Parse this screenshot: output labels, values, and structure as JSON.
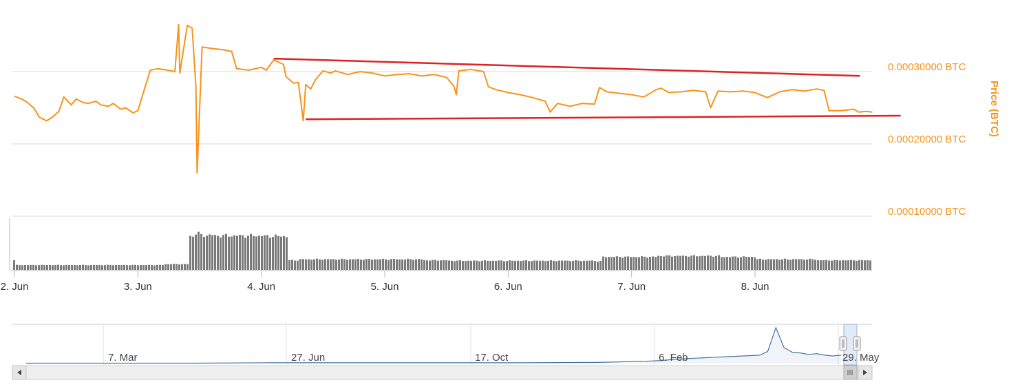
{
  "colors": {
    "price_line": "#f7931a",
    "trend_lines": "#e02020",
    "volume_bars": "#7a7a7a",
    "grid": "#d8d8d8",
    "navigator_line": "#4572a7",
    "axis_label": "#f7931a"
  },
  "chart_data": {
    "type": "line",
    "y_axis": {
      "title": "Price (BTC)",
      "ticks": [
        "0.00030000 BTC",
        "0.00020000 BTC",
        "0.00010000 BTC"
      ],
      "tick_values": [
        0.0003,
        0.0002,
        0.0001
      ],
      "ylim": [
        0.0001,
        0.00039
      ]
    },
    "x_axis": {
      "ticks": [
        "2. Jun",
        "3. Jun",
        "4. Jun",
        "5. Jun",
        "6. Jun",
        "7. Jun",
        "8. Jun"
      ],
      "tick_values": [
        2,
        3,
        4,
        5,
        6,
        7,
        8
      ],
      "xlim": [
        2.0,
        8.95
      ]
    },
    "grid": true,
    "series": [],
    "price": {
      "x": [
        2.0,
        2.06,
        2.1,
        2.16,
        2.2,
        2.26,
        2.3,
        2.36,
        2.4,
        2.46,
        2.5,
        2.56,
        2.6,
        2.66,
        2.7,
        2.76,
        2.8,
        2.86,
        2.9,
        2.96,
        3.0,
        3.1,
        3.16,
        3.24,
        3.3,
        3.33,
        3.34,
        3.4,
        3.44,
        3.47,
        3.48,
        3.52,
        3.6,
        3.7,
        3.76,
        3.8,
        3.9,
        4.0,
        4.04,
        4.1,
        4.18,
        4.2,
        4.26,
        4.3,
        4.34,
        4.36,
        4.4,
        4.44,
        4.5,
        4.56,
        4.6,
        4.7,
        4.8,
        4.9,
        5.0,
        5.1,
        5.2,
        5.3,
        5.4,
        5.5,
        5.56,
        5.58,
        5.6,
        5.7,
        5.8,
        5.84,
        5.9,
        6.0,
        6.1,
        6.2,
        6.3,
        6.34,
        6.4,
        6.5,
        6.6,
        6.7,
        6.74,
        6.8,
        6.9,
        7.0,
        7.1,
        7.2,
        7.24,
        7.3,
        7.4,
        7.5,
        7.6,
        7.64,
        7.7,
        7.8,
        7.9,
        8.0,
        8.1,
        8.2,
        8.3,
        8.4,
        8.5,
        8.56,
        8.6,
        8.7,
        8.8,
        8.84,
        8.9,
        8.95
      ],
      "y": [
        0.000266,
        0.000262,
        0.000258,
        0.000249,
        0.000237,
        0.000232,
        0.000236,
        0.000245,
        0.000265,
        0.000254,
        0.000262,
        0.000257,
        0.000256,
        0.000259,
        0.000254,
        0.000252,
        0.000256,
        0.000248,
        0.00025,
        0.000243,
        0.000246,
        0.000302,
        0.000304,
        0.000302,
        0.0003,
        0.000365,
        0.000298,
        0.000364,
        0.00036,
        0.00028,
        0.00016,
        0.000334,
        0.000332,
        0.00033,
        0.000328,
        0.000304,
        0.000302,
        0.000306,
        0.000302,
        0.000316,
        0.00031,
        0.000293,
        0.000284,
        0.000285,
        0.000232,
        0.000282,
        0.000276,
        0.000289,
        0.000301,
        0.000298,
        0.000301,
        0.000296,
        0.0003,
        0.000298,
        0.000294,
        0.000296,
        0.000297,
        0.000294,
        0.000296,
        0.000292,
        0.00028,
        0.000268,
        0.000301,
        0.000303,
        0.0003,
        0.000279,
        0.000275,
        0.000271,
        0.000268,
        0.000264,
        0.000259,
        0.000244,
        0.000256,
        0.000252,
        0.000256,
        0.000255,
        0.000278,
        0.000272,
        0.00027,
        0.000268,
        0.000265,
        0.000275,
        0.000277,
        0.000271,
        0.000272,
        0.000274,
        0.000272,
        0.00025,
        0.000273,
        0.000272,
        0.000273,
        0.000271,
        0.000264,
        0.000272,
        0.000275,
        0.000273,
        0.000276,
        0.000274,
        0.000246,
        0.000246,
        0.000248,
        0.000244,
        0.000245,
        0.000244
      ]
    },
    "trend_lines": [
      {
        "x": [
          4.1,
          8.85
        ],
        "y": [
          0.000318,
          0.000294
        ]
      },
      {
        "x": [
          4.36,
          9.18
        ],
        "y": [
          0.000234,
          0.000239
        ]
      }
    ],
    "volume": {
      "x": [
        2.0,
        3.0,
        3.2,
        3.4,
        3.45,
        3.5,
        3.6,
        4.0,
        4.2,
        4.3,
        5.0,
        5.3,
        5.5,
        6.0,
        6.7,
        6.75,
        7.2,
        7.7,
        8.0,
        8.5,
        8.95
      ],
      "values": [
        0.1,
        0.1,
        0.12,
        0.7,
        0.76,
        0.72,
        0.71,
        0.7,
        0.2,
        0.22,
        0.22,
        0.2,
        0.19,
        0.19,
        0.18,
        0.27,
        0.29,
        0.27,
        0.22,
        0.2,
        0.2
      ]
    },
    "navigator": {
      "ticks": [
        "7. Mar",
        "27. Jun",
        "17. Oct",
        "6. Feb",
        "29. May"
      ],
      "x": [
        0.0,
        0.1,
        0.2,
        0.3,
        0.4,
        0.5,
        0.6,
        0.7,
        0.76,
        0.78,
        0.8,
        0.82,
        0.84,
        0.86,
        0.88,
        0.9,
        0.91,
        0.92,
        0.93,
        0.94,
        0.95,
        0.96,
        0.97,
        0.98,
        0.99,
        1.0
      ],
      "y": [
        0.01,
        0.01,
        0.01,
        0.02,
        0.02,
        0.02,
        0.02,
        0.03,
        0.06,
        0.08,
        0.12,
        0.14,
        0.16,
        0.18,
        0.2,
        0.22,
        0.32,
        0.95,
        0.42,
        0.3,
        0.28,
        0.24,
        0.26,
        0.22,
        0.2,
        0.22
      ]
    }
  }
}
